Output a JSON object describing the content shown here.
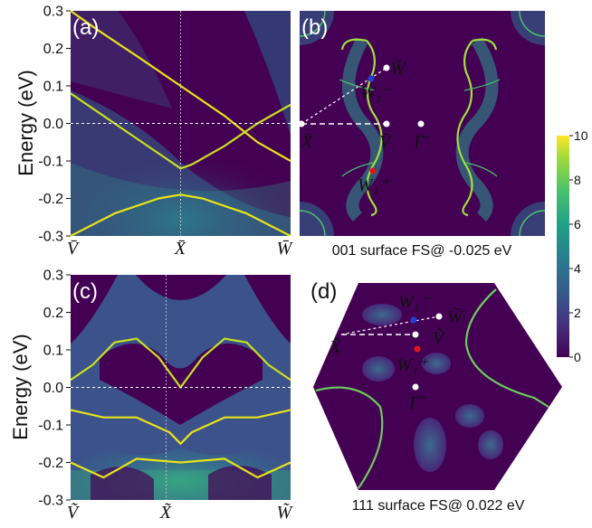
{
  "colors": {
    "background_low": "#440154",
    "mid_teal": "#21918c",
    "high_yellow": "#fde725",
    "red_point": "#e3121b",
    "blue_point": "#1f3fd6",
    "white": "#ffffff"
  },
  "chart_data": [
    {
      "id": "a",
      "type": "heatmap",
      "panel_label": "(a)",
      "ylabel": "Energy (eV)",
      "ylim": [
        -0.3,
        0.3
      ],
      "yticks": [
        "0.3",
        "0.2",
        "0.1",
        "0.0",
        "-0.1",
        "-0.2",
        "-0.3"
      ],
      "xticks": [
        "V̄",
        "X̄",
        "W̄"
      ],
      "reference_line_energy": 0.0,
      "bands": [
        {
          "x": [
            0,
            0.15,
            0.3,
            0.45,
            0.5,
            0.55,
            0.7,
            0.85,
            1.0
          ],
          "y": [
            0.08,
            0.02,
            -0.04,
            -0.1,
            -0.12,
            -0.11,
            -0.06,
            0.0,
            0.05
          ]
        },
        {
          "x": [
            0,
            0.2,
            0.4,
            0.5,
            0.6,
            0.8,
            1.0
          ],
          "y": [
            -0.3,
            -0.24,
            -0.2,
            -0.19,
            -0.2,
            -0.24,
            -0.3
          ]
        },
        {
          "x": [
            0.0,
            0.12,
            0.3,
            0.5,
            0.7,
            0.85,
            1.0
          ],
          "y": [
            0.3,
            0.25,
            0.18,
            0.1,
            0.02,
            -0.05,
            -0.1
          ]
        }
      ]
    },
    {
      "id": "b",
      "type": "heatmap",
      "panel_label": "(b)",
      "caption": "001 surface FS@ -0.025 eV",
      "points": [
        {
          "label": "W̄",
          "color": "white"
        },
        {
          "label": "W₁⁻",
          "color": "blue"
        },
        {
          "label": "X̄",
          "color": "white"
        },
        {
          "label": "V̄",
          "color": "white"
        },
        {
          "label": "Γ̄",
          "color": "white"
        },
        {
          "label": "W₁⁺",
          "color": "red"
        }
      ]
    },
    {
      "id": "c",
      "type": "heatmap",
      "panel_label": "(c)",
      "ylabel": "Energy (eV)",
      "ylim": [
        -0.3,
        0.3
      ],
      "yticks": [
        "0.3",
        "0.2",
        "0.1",
        "0.0",
        "-0.1",
        "-0.2",
        "-0.3"
      ],
      "xticks": [
        "Ṽ",
        "X̃",
        "W̃"
      ],
      "reference_line_energy": 0.0,
      "bands": [
        {
          "x": [
            0,
            0.1,
            0.2,
            0.3,
            0.4,
            0.5,
            0.6,
            0.7,
            0.8,
            0.9,
            1.0
          ],
          "y": [
            0.02,
            0.06,
            0.12,
            0.13,
            0.08,
            0.0,
            0.08,
            0.13,
            0.12,
            0.06,
            0.02
          ]
        },
        {
          "x": [
            0,
            0.15,
            0.3,
            0.45,
            0.5,
            0.55,
            0.7,
            0.85,
            1.0
          ],
          "y": [
            -0.06,
            -0.08,
            -0.08,
            -0.12,
            -0.15,
            -0.12,
            -0.08,
            -0.08,
            -0.06
          ]
        },
        {
          "x": [
            0,
            0.15,
            0.3,
            0.5,
            0.7,
            0.85,
            1.0
          ],
          "y": [
            -0.2,
            -0.24,
            -0.19,
            -0.2,
            -0.19,
            -0.24,
            -0.2
          ]
        }
      ]
    },
    {
      "id": "d",
      "type": "heatmap",
      "panel_label": "(d)",
      "caption": "111 surface FS@ 0.022 eV",
      "points": [
        {
          "label": "W₁⁻",
          "color": "blue"
        },
        {
          "label": "W̃",
          "color": "white"
        },
        {
          "label": "X̃",
          "color": "white"
        },
        {
          "label": "Ṽ",
          "color": "white"
        },
        {
          "label": "W₁⁺",
          "color": "red"
        },
        {
          "label": "Γ̃",
          "color": "white"
        }
      ]
    },
    {
      "id": "colorbar",
      "type": "heatmap",
      "range": [
        0,
        10
      ],
      "ticks": [
        "10",
        "8",
        "6",
        "4",
        "2",
        "0"
      ]
    }
  ]
}
